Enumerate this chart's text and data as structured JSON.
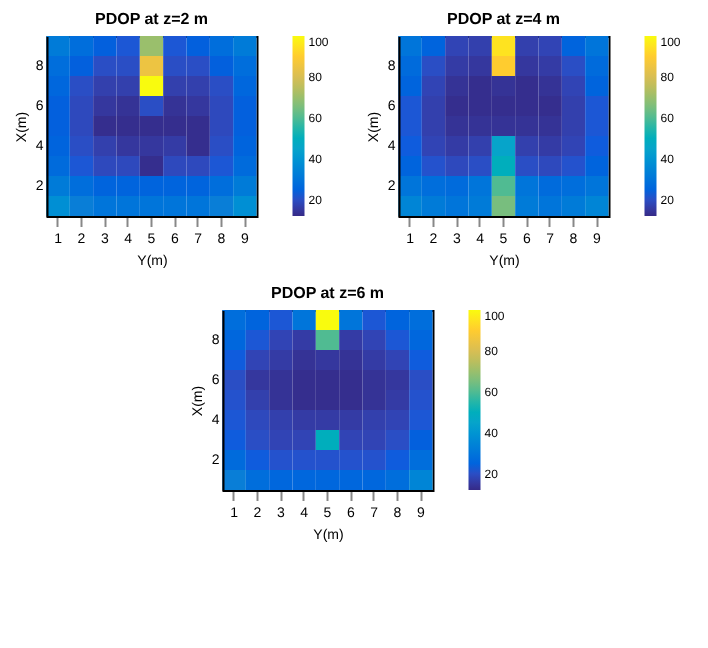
{
  "chart_data": [
    {
      "type": "heatmap",
      "title": "PDOP at z=2 m",
      "xlabel": "Y(m)",
      "ylabel": "X(m)",
      "categories": [
        "1",
        "2",
        "3",
        "4",
        "5",
        "6",
        "7",
        "8",
        "9"
      ],
      "y_categories": [
        null,
        "8",
        null,
        "6",
        null,
        "4",
        null,
        "2",
        null
      ],
      "clim": [
        12,
        100
      ],
      "cticks": [
        20,
        40,
        60,
        80,
        100
      ],
      "cells": [
        [
          32,
          28,
          24,
          22,
          70,
          22,
          24,
          28,
          32
        ],
        [
          28,
          24,
          20,
          20,
          85,
          20,
          20,
          24,
          28
        ],
        [
          26,
          20,
          17,
          17,
          100,
          17,
          17,
          20,
          26
        ],
        [
          24,
          19,
          15,
          14,
          20,
          14,
          15,
          19,
          24
        ],
        [
          24,
          19,
          13,
          13,
          13,
          13,
          13,
          19,
          24
        ],
        [
          25,
          20,
          17,
          15,
          15,
          16,
          13,
          20,
          25
        ],
        [
          27,
          22,
          19,
          19,
          13,
          19,
          19,
          22,
          27
        ],
        [
          32,
          28,
          25,
          25,
          25,
          25,
          25,
          28,
          32
        ],
        [
          38,
          33,
          30,
          30,
          30,
          30,
          30,
          33,
          38
        ]
      ]
    },
    {
      "type": "heatmap",
      "title": "PDOP at z=4 m",
      "xlabel": "Y(m)",
      "ylabel": "X(m)",
      "categories": [
        "1",
        "2",
        "3",
        "4",
        "5",
        "6",
        "7",
        "8",
        "9"
      ],
      "y_categories": [
        null,
        "8",
        null,
        "6",
        null,
        "4",
        null,
        "2",
        null
      ],
      "clim": [
        12,
        100
      ],
      "cticks": [
        20,
        40,
        60,
        80,
        100
      ],
      "cells": [
        [
          30,
          25,
          18,
          17,
          95,
          17,
          18,
          25,
          30
        ],
        [
          27,
          20,
          16,
          15,
          90,
          15,
          16,
          20,
          27
        ],
        [
          25,
          18,
          14,
          13,
          14,
          13,
          14,
          18,
          25
        ],
        [
          22,
          17,
          13,
          13,
          13,
          13,
          13,
          17,
          22
        ],
        [
          22,
          17,
          14,
          14,
          14,
          14,
          14,
          17,
          22
        ],
        [
          23,
          18,
          16,
          17,
          45,
          17,
          16,
          18,
          23
        ],
        [
          25,
          21,
          19,
          20,
          50,
          20,
          19,
          21,
          25
        ],
        [
          30,
          28,
          27,
          30,
          60,
          30,
          27,
          28,
          30
        ],
        [
          35,
          32,
          30,
          32,
          65,
          32,
          30,
          32,
          35
        ]
      ]
    },
    {
      "type": "heatmap",
      "title": "PDOP at z=6 m",
      "xlabel": "Y(m)",
      "ylabel": "X(m)",
      "categories": [
        "1",
        "2",
        "3",
        "4",
        "5",
        "6",
        "7",
        "8",
        "9"
      ],
      "y_categories": [
        null,
        "8",
        null,
        "6",
        null,
        "4",
        null,
        "2",
        null
      ],
      "clim": [
        12,
        100
      ],
      "cticks": [
        20,
        40,
        60,
        80,
        100
      ],
      "cells": [
        [
          28,
          25,
          22,
          30,
          100,
          30,
          22,
          25,
          28
        ],
        [
          26,
          22,
          18,
          16,
          60,
          16,
          18,
          22,
          26
        ],
        [
          23,
          18,
          16,
          14,
          15,
          14,
          16,
          18,
          23
        ],
        [
          20,
          15,
          14,
          13,
          13,
          13,
          14,
          15,
          20
        ],
        [
          21,
          17,
          14,
          13,
          13,
          13,
          14,
          16,
          21
        ],
        [
          22,
          19,
          17,
          16,
          16,
          16,
          17,
          18,
          22
        ],
        [
          23,
          20,
          18,
          18,
          50,
          18,
          18,
          20,
          24
        ],
        [
          27,
          23,
          21,
          21,
          21,
          21,
          21,
          23,
          28
        ],
        [
          33,
          28,
          26,
          26,
          26,
          26,
          26,
          28,
          35
        ]
      ]
    }
  ]
}
